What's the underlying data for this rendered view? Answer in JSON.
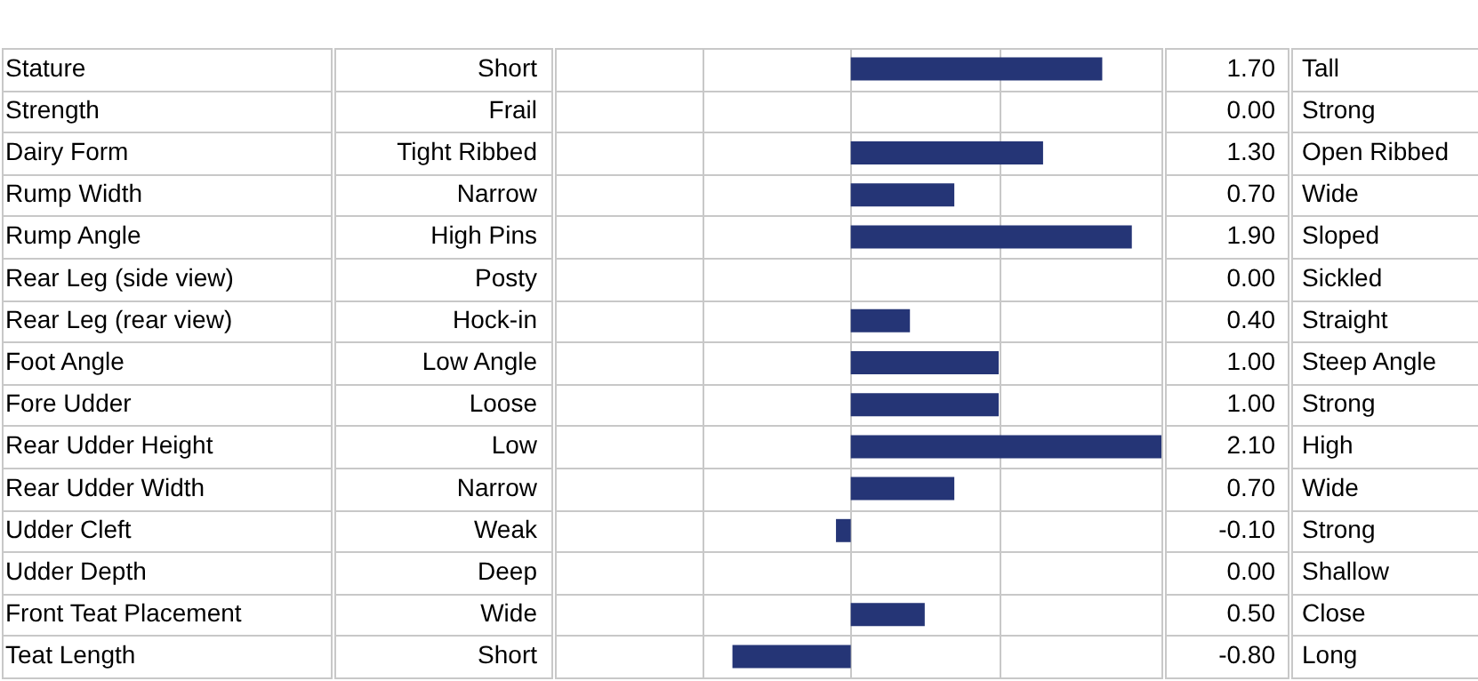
{
  "chart_data": {
    "type": "bar",
    "orientation": "horizontal",
    "categories": [
      "Stature",
      "Strength",
      "Dairy Form",
      "Rump Width",
      "Rump Angle",
      "Rear Leg (side view)",
      "Rear Leg (rear view)",
      "Foot Angle",
      "Fore Udder",
      "Rear Udder Height",
      "Rear Udder Width",
      "Udder Cleft",
      "Udder Depth",
      "Front Teat Placement",
      "Teat Length"
    ],
    "values": [
      1.7,
      0,
      1.3,
      0.7,
      1.9,
      0,
      0.4,
      1,
      1,
      2.1,
      0.7,
      -0.1,
      0,
      0.5,
      -0.8
    ],
    "value_labels": [
      "1.70",
      "0.00",
      "1.30",
      "0.70",
      "1.90",
      "0.00",
      "0.40",
      "1.00",
      "1.00",
      "2.10",
      "0.70",
      "-0.10",
      "0.00",
      "0.50",
      "-0.80"
    ],
    "color": "#253576",
    "xlim": [
      -2,
      2.1
    ],
    "xticks": [
      {
        "value": -1,
        "label": null
      },
      {
        "value": 0,
        "label": null
      },
      {
        "value": 1,
        "label": null
      }
    ],
    "grid": "x",
    "annotations": [
      "Short",
      "Frail",
      "Tight Ribbed",
      "Narrow",
      "High Pins",
      "Posty",
      "Hock-in",
      "Low Angle",
      "Loose",
      "Low",
      "Narrow",
      "Weak",
      "Deep",
      "Wide",
      "Short",
      "Tall",
      "Strong",
      "Open Ribbed",
      "Wide",
      "Sloped",
      "Sickled",
      "Straight",
      "Steep Angle",
      "Strong",
      "High",
      "Wide",
      "Strong",
      "Shallow",
      "Close",
      "Long"
    ]
  }
}
